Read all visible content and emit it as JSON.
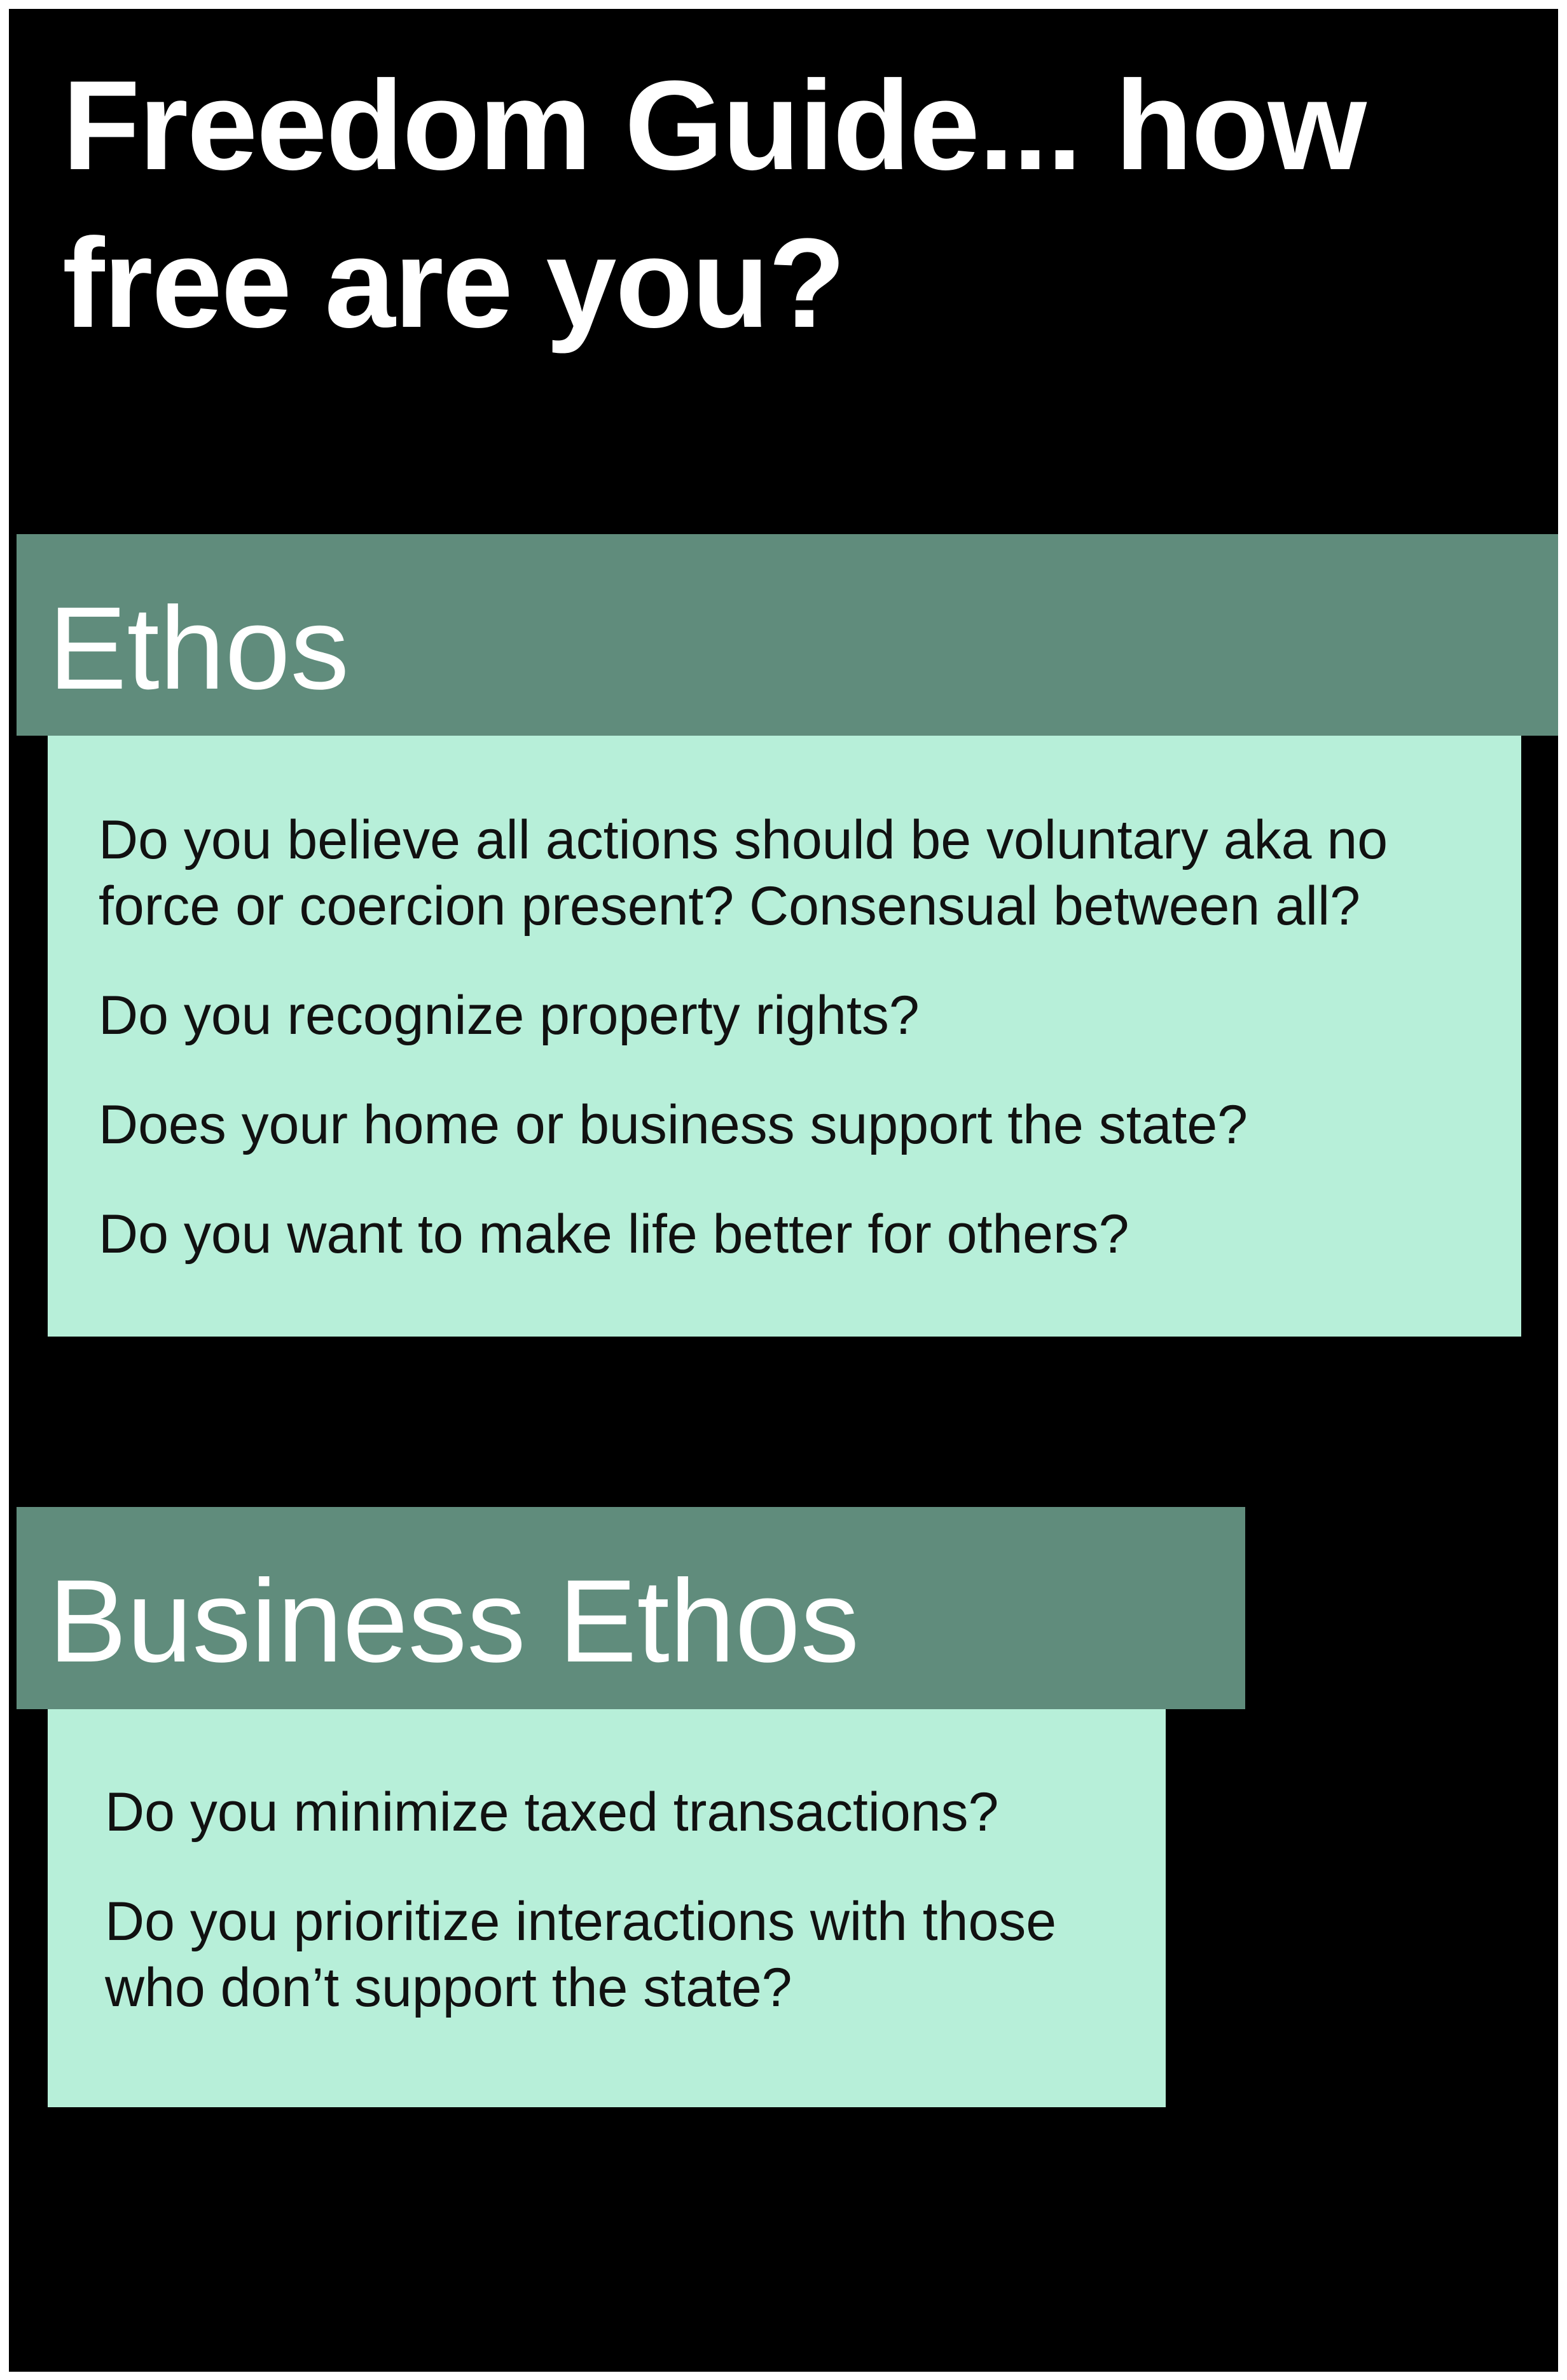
{
  "title": "Freedom Guide... how free are you?",
  "sections": [
    {
      "heading": "Ethos",
      "questions": [
        "Do you believe all actions should be voluntary aka no force or coercion present? Consensual between all?",
        "Do you recognize property rights?",
        "Does your home or business support the state?",
        "Do you want to make life better for others?"
      ]
    },
    {
      "heading": "Business Ethos",
      "questions": [
        "Do you minimize taxed transactions?",
        "Do you prioritize interactions with those who don’t support the state?"
      ]
    }
  ],
  "colors": {
    "background": "#000000",
    "header": "#608c7c",
    "card": "#b7efd9",
    "title_text": "#ffffff",
    "question_text": "#111111"
  }
}
